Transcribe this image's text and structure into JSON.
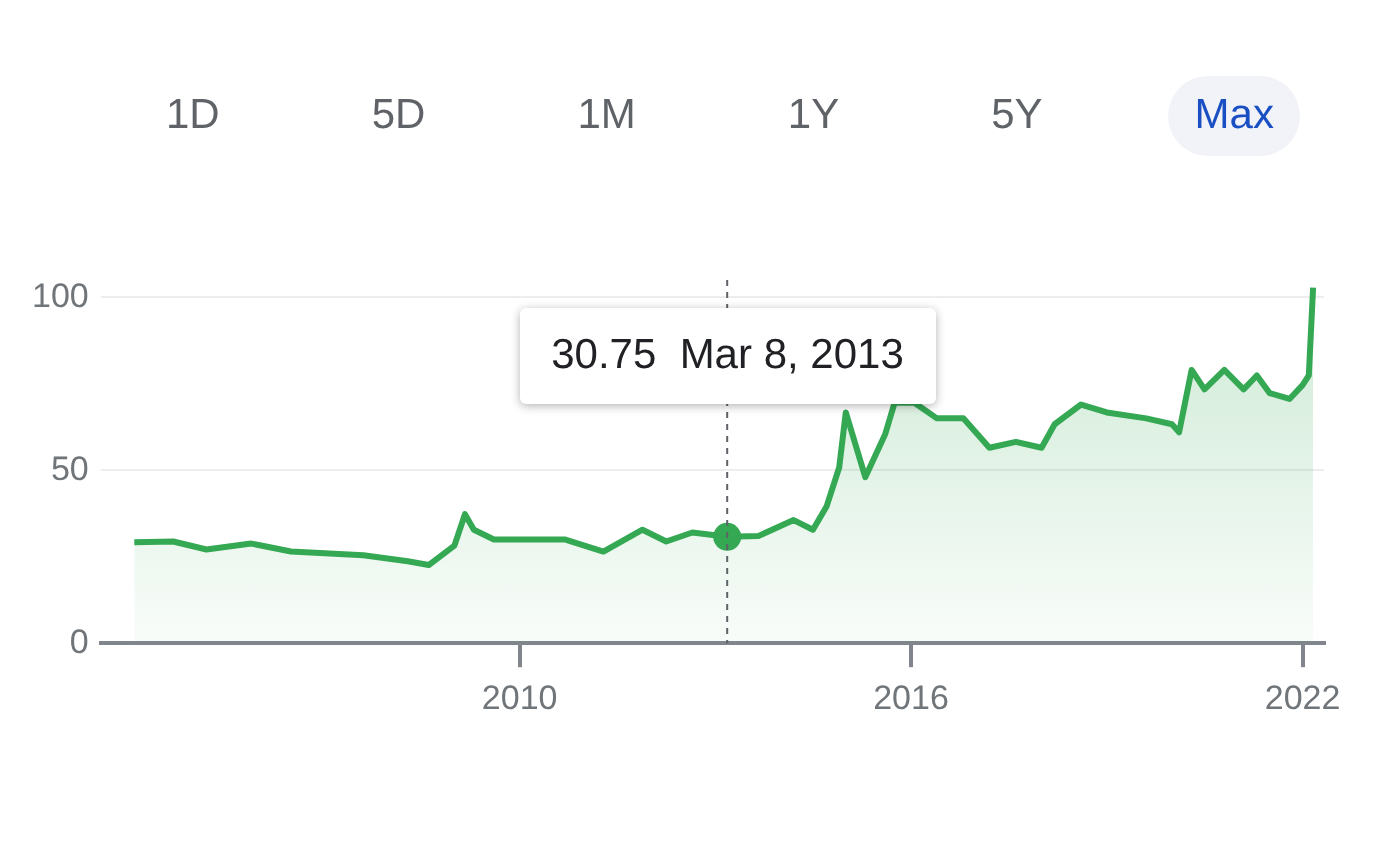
{
  "chart_data": {
    "type": "area",
    "x": [
      "2004-02-05",
      "2004-09-10",
      "2005-03-15",
      "2005-11-20",
      "2006-07-01",
      "2007-08-10",
      "2008-04-15",
      "2008-08-10",
      "2009-01-01",
      "2009-03-01",
      "2009-04-20",
      "2009-08-10",
      "2010-01-20",
      "2010-09-10",
      "2011-04-15",
      "2011-11-20",
      "2012-04-01",
      "2012-08-25",
      "2013-03-08",
      "2013-08-30",
      "2014-03-15",
      "2014-07-01",
      "2014-09-15",
      "2014-11-25",
      "2015-01-01",
      "2015-04-20",
      "2015-08-10",
      "2015-10-01",
      "2016-01-20",
      "2016-05-25",
      "2016-10-20",
      "2017-03-15",
      "2017-08-10",
      "2018-01-01",
      "2018-03-15",
      "2018-08-10",
      "2019-01-01",
      "2019-08-10",
      "2020-01-01",
      "2020-02-10",
      "2020-04-20",
      "2020-07-01",
      "2020-10-20",
      "2021-02-05",
      "2021-04-20",
      "2021-07-01",
      "2021-10-20",
      "2022-01-01",
      "2022-02-05",
      "2022-03-01"
    ],
    "series": [
      {
        "color": "#34a853",
        "values": [
          29.2,
          29.4,
          27.1,
          28.8,
          26.5,
          25.4,
          23.7,
          22.6,
          28.2,
          37.3,
          32.8,
          30,
          30,
          30,
          26.5,
          32.8,
          29.4,
          32,
          30.75,
          31,
          35.6,
          32.8,
          39.5,
          50.8,
          66.7,
          48,
          60.5,
          69.5,
          69.5,
          65,
          65,
          56.5,
          58.2,
          56.5,
          63.3,
          69,
          66.7,
          65,
          63.3,
          61,
          79,
          73.4,
          79,
          73.4,
          77.4,
          72.3,
          70.6,
          74.6,
          77.4,
          102.8
        ]
      }
    ],
    "xlim": [
      "2003-08",
      "2022-05"
    ],
    "xticks": [
      "2010",
      "2016",
      "2022"
    ],
    "ylim": [
      0,
      105
    ],
    "yticks": [
      0,
      50,
      100
    ],
    "grid": "y",
    "legend": false,
    "ref_lines": [
      {
        "axis": "x",
        "value": "2013-03-08",
        "line_style": "dashed",
        "color": "#5f6368",
        "label": "30.75  Mar 8, 2013"
      }
    ],
    "annotations": [
      "1D",
      "5D",
      "1M",
      "1Y",
      "5Y",
      "Max"
    ]
  }
}
